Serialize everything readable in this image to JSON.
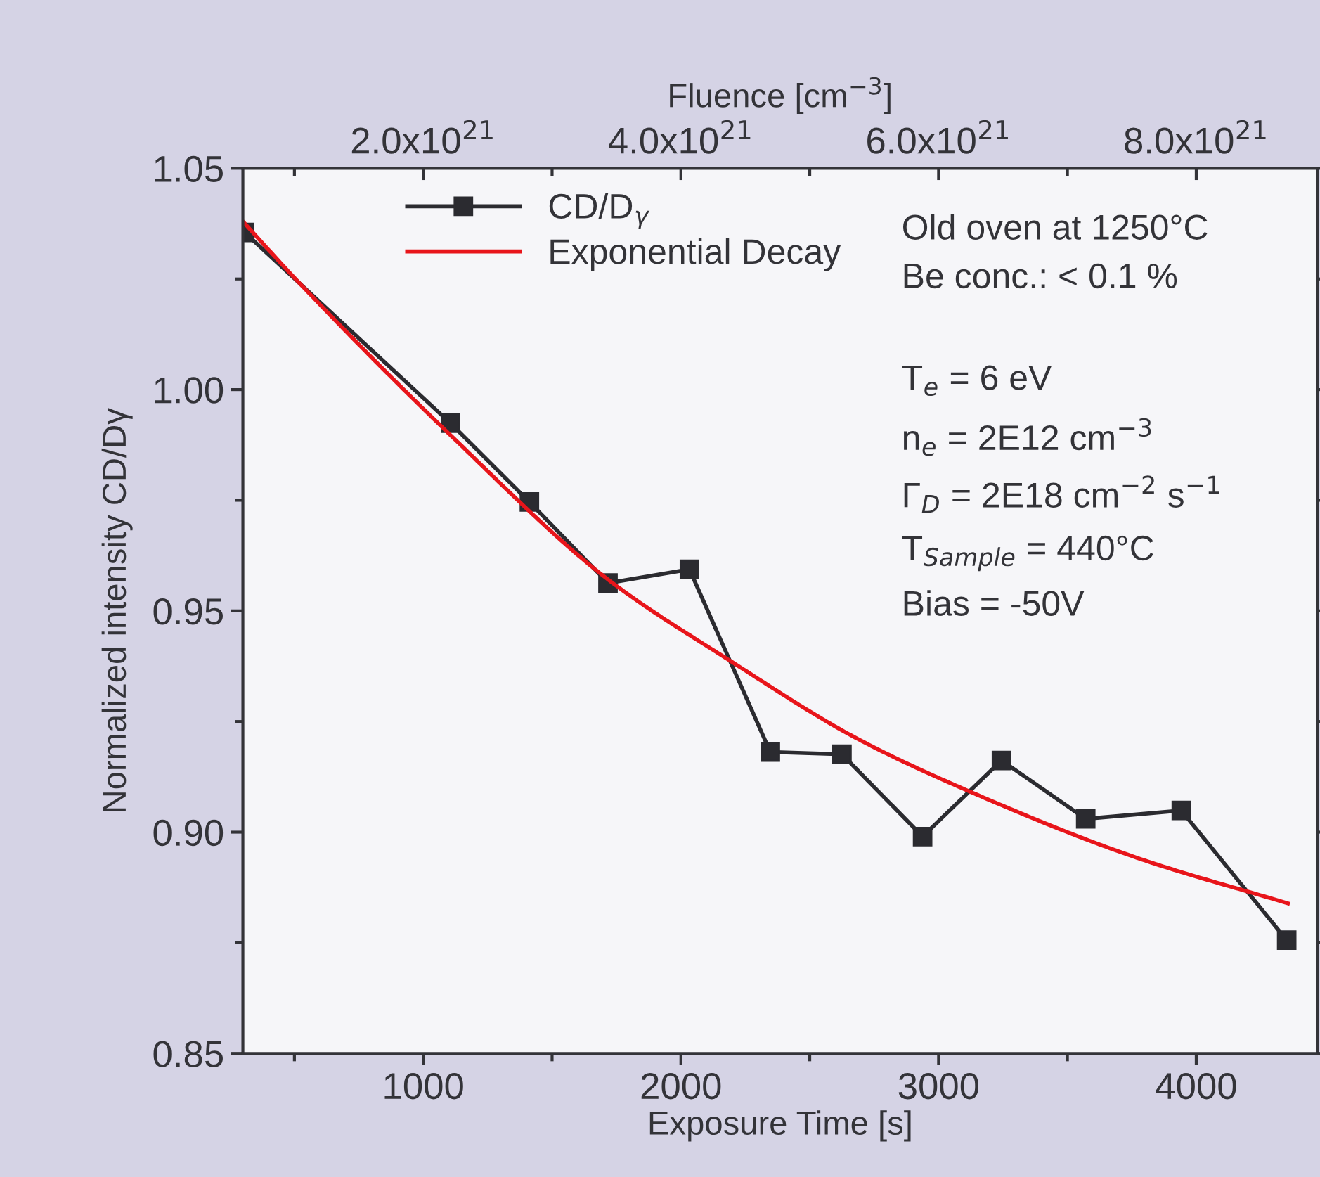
{
  "chart_data": {
    "type": "line",
    "xlabel": "Exposure Time [s]",
    "ylabel": "Normalized intensity CD/Dγ",
    "x2label": "Fluence [cm$^{−3}$]",
    "xlim": [
      300,
      4470
    ],
    "xticks": [
      {
        "value": 500,
        "label": null
      },
      1000,
      {
        "value": 1500,
        "label": null
      },
      2000,
      {
        "value": 2500,
        "label": null
      },
      3000,
      {
        "value": 3500,
        "label": null
      },
      4000
    ],
    "x2lim": [
      6e+20,
      8.94e+21
    ],
    "x2ticks": [
      {
        "value": 1e+21,
        "label": null
      },
      {
        "value": 2e+21,
        "label": "2.0x10$^{21}$"
      },
      {
        "value": 3e+21,
        "label": null
      },
      {
        "value": 4e+21,
        "label": "4.0x10$^{21}$"
      },
      {
        "value": 5e+21,
        "label": null
      },
      {
        "value": 6e+21,
        "label": "6.0x10$^{21}$"
      },
      {
        "value": 7e+21,
        "label": null
      },
      {
        "value": 8e+21,
        "label": "8.0x10$^{21}$"
      }
    ],
    "ylim": [
      0.85,
      1.05
    ],
    "yticks": [
      {
        "value": 0.85,
        "label": "0.85"
      },
      {
        "value": 0.875,
        "label": null
      },
      {
        "value": 0.9,
        "label": "0.90"
      },
      {
        "value": 0.925,
        "label": null
      },
      {
        "value": 0.95,
        "label": "0.95"
      },
      {
        "value": 0.975,
        "label": null
      },
      {
        "value": 1.0,
        "label": "1.00"
      },
      {
        "value": 1.025,
        "label": null
      },
      {
        "value": 1.05,
        "label": "1.05"
      }
    ],
    "series": [
      {
        "name": "CD/D$_{γ}$",
        "color": "#2b2b30",
        "marker": "square",
        "line_style": "solid",
        "x": [
          307,
          1106,
          1412,
          1717,
          2033,
          2347,
          2625,
          2938,
          3244,
          3571,
          3942,
          4351
        ],
        "values": [
          1.0355,
          0.9924,
          0.9746,
          0.9563,
          0.9594,
          0.9181,
          0.9176,
          0.899,
          0.9162,
          0.903,
          0.9049,
          0.8756
        ]
      },
      {
        "name": "Exponential Decay",
        "color": "#e8151b",
        "marker": "none",
        "line_style": "solid",
        "x": [
          300,
          498,
          1106,
          1717,
          2189,
          2679,
          3116,
          3770,
          4356
        ],
        "values": [
          1.038,
          1.0254,
          0.9897,
          0.9571,
          0.9388,
          0.9213,
          0.9093,
          0.8942,
          0.8839
        ]
      }
    ],
    "legend": "top left",
    "grid": false,
    "annotations": [
      "Old oven at 1250°C",
      "Be conc.: < 0.1 %",
      "T$_{e}$ = 6 eV",
      "n$_{e}$ = 2E12 cm$^{−3}$",
      "Γ$_{D}$ = 2E18 cm$^{−2}$ s$^{−1}$",
      "T$_{Sample}$ = 440°C",
      "Bias = -50V"
    ]
  }
}
